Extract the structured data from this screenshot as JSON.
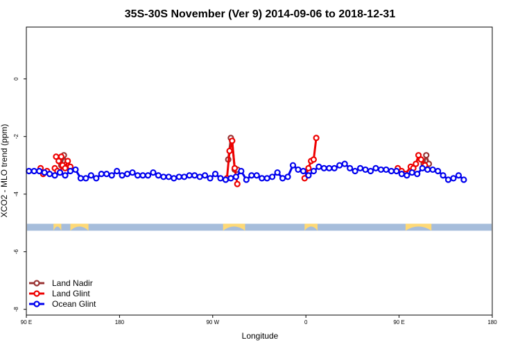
{
  "chart_data": {
    "type": "line",
    "title": "35S-30S November (Ver 9)   2014-09-06 to 2018-12-31",
    "xlabel": "Longitude",
    "ylabel": "XCO2 - MLO trend (ppm)",
    "xlim": [
      90,
      450
    ],
    "ylim": [
      -8.2,
      1.8
    ],
    "x_ticks": [
      {
        "value": 90,
        "label": "90 E"
      },
      {
        "value": 162,
        "label": "180"
      },
      {
        "value": 234,
        "label": "90 W"
      },
      {
        "value": 306,
        "label": "0"
      },
      {
        "value": 378,
        "label": "90 E"
      },
      {
        "value": 450,
        "label": "180"
      }
    ],
    "y_ticks": [
      {
        "value": 0,
        "label": "0"
      },
      {
        "value": -2,
        "label": "-2"
      },
      {
        "value": -4,
        "label": "-4"
      },
      {
        "value": -6,
        "label": "-6"
      },
      {
        "value": -8,
        "label": "-8"
      }
    ],
    "grid": false,
    "legend_position": "bottom-left",
    "land_mask_band": {
      "y": -5.15,
      "ocean_color": "#a6bddb",
      "land_color": "#fed976",
      "land_segms": [
        [
          111,
          117
        ],
        [
          124,
          138
        ],
        [
          242,
          259
        ],
        [
          305,
          315
        ],
        [
          383,
          403
        ]
      ]
    },
    "series": [
      {
        "name": "Land Nadir",
        "color": "#993333",
        "segments": [
          [
            [
              117,
              -3.0
            ],
            [
              119,
              -2.65
            ],
            [
              121,
              -2.95
            ]
          ],
          [
            [
              246,
              -2.8
            ],
            [
              248,
              -2.05
            ],
            [
              249,
              -2.15
            ],
            [
              251,
              -3.15
            ],
            [
              253,
              -3.15
            ]
          ],
          [
            [
              397,
              -2.95
            ],
            [
              399,
              -2.65
            ],
            [
              401,
              -2.95
            ]
          ]
        ]
      },
      {
        "name": "Land Glint",
        "color": "#ee0000",
        "segments": [
          [
            [
              112,
              -3.1
            ],
            [
              114,
              -3.2
            ],
            [
              116,
              -3.25
            ],
            [
              118,
              -3.0
            ],
            [
              120,
              -3.1
            ],
            [
              122,
              -2.85
            ],
            [
              124,
              -3.05
            ]
          ],
          [
            [
              101,
              -3.1
            ],
            [
              103,
              -3.3
            ],
            [
              106,
              -3.2
            ]
          ],
          [
            [
              245,
              -3.45
            ],
            [
              247,
              -2.5
            ],
            [
              249,
              -2.15
            ],
            [
              251,
              -3.1
            ],
            [
              253,
              -3.65
            ]
          ],
          [
            [
              305,
              -3.45
            ],
            [
              308,
              -3.1
            ],
            [
              310,
              -2.85
            ],
            [
              312,
              -2.8
            ],
            [
              314,
              -2.05
            ]
          ],
          [
            [
              377,
              -3.1
            ],
            [
              380,
              -3.2
            ],
            [
              383,
              -3.3
            ],
            [
              387,
              -3.05
            ],
            [
              389,
              -3.1
            ],
            [
              391,
              -2.95
            ],
            [
              393,
              -2.65
            ],
            [
              395,
              -2.8
            ],
            [
              398,
              -3.0
            ]
          ],
          [
            [
              113,
              -2.7
            ],
            [
              115,
              -2.85
            ],
            [
              117,
              -2.7
            ]
          ]
        ]
      },
      {
        "name": "Ocean Glint",
        "color": "#0000ee",
        "segments": [
          [
            [
              92,
              -3.2
            ],
            [
              96,
              -3.2
            ],
            [
              100,
              -3.2
            ],
            [
              104,
              -3.25
            ],
            [
              108,
              -3.3
            ],
            [
              112,
              -3.35
            ],
            [
              116,
              -3.25
            ],
            [
              120,
              -3.35
            ],
            [
              124,
              -3.2
            ],
            [
              128,
              -3.15
            ],
            [
              132,
              -3.45
            ],
            [
              136,
              -3.45
            ],
            [
              140,
              -3.35
            ],
            [
              144,
              -3.45
            ],
            [
              148,
              -3.3
            ],
            [
              152,
              -3.3
            ],
            [
              156,
              -3.35
            ],
            [
              160,
              -3.2
            ],
            [
              164,
              -3.35
            ],
            [
              168,
              -3.3
            ],
            [
              172,
              -3.25
            ],
            [
              176,
              -3.35
            ],
            [
              180,
              -3.35
            ],
            [
              184,
              -3.35
            ],
            [
              188,
              -3.25
            ],
            [
              192,
              -3.35
            ],
            [
              196,
              -3.4
            ],
            [
              200,
              -3.4
            ],
            [
              204,
              -3.45
            ],
            [
              208,
              -3.4
            ],
            [
              212,
              -3.4
            ],
            [
              216,
              -3.35
            ],
            [
              220,
              -3.35
            ],
            [
              224,
              -3.4
            ],
            [
              228,
              -3.35
            ],
            [
              232,
              -3.45
            ],
            [
              236,
              -3.3
            ],
            [
              240,
              -3.45
            ],
            [
              244,
              -3.5
            ],
            [
              248,
              -3.45
            ],
            [
              252,
              -3.4
            ],
            [
              256,
              -3.2
            ],
            [
              260,
              -3.5
            ],
            [
              264,
              -3.35
            ],
            [
              268,
              -3.35
            ],
            [
              272,
              -3.45
            ],
            [
              276,
              -3.45
            ],
            [
              280,
              -3.4
            ],
            [
              284,
              -3.25
            ],
            [
              288,
              -3.45
            ],
            [
              292,
              -3.4
            ],
            [
              296,
              -3.0
            ],
            [
              300,
              -3.15
            ],
            [
              304,
              -3.2
            ],
            [
              308,
              -3.35
            ],
            [
              312,
              -3.2
            ],
            [
              316,
              -3.05
            ],
            [
              320,
              -3.1
            ],
            [
              324,
              -3.1
            ],
            [
              328,
              -3.1
            ],
            [
              332,
              -3.0
            ],
            [
              336,
              -2.95
            ],
            [
              340,
              -3.1
            ],
            [
              344,
              -3.2
            ],
            [
              348,
              -3.1
            ],
            [
              352,
              -3.15
            ],
            [
              356,
              -3.2
            ],
            [
              360,
              -3.1
            ],
            [
              364,
              -3.15
            ],
            [
              368,
              -3.15
            ],
            [
              372,
              -3.2
            ],
            [
              376,
              -3.2
            ],
            [
              380,
              -3.3
            ],
            [
              384,
              -3.35
            ],
            [
              388,
              -3.25
            ],
            [
              392,
              -3.3
            ],
            [
              396,
              -3.1
            ],
            [
              400,
              -3.15
            ],
            [
              404,
              -3.15
            ],
            [
              408,
              -3.2
            ],
            [
              412,
              -3.35
            ],
            [
              416,
              -3.5
            ],
            [
              420,
              -3.45
            ],
            [
              424,
              -3.35
            ],
            [
              428,
              -3.5
            ]
          ]
        ]
      }
    ]
  }
}
